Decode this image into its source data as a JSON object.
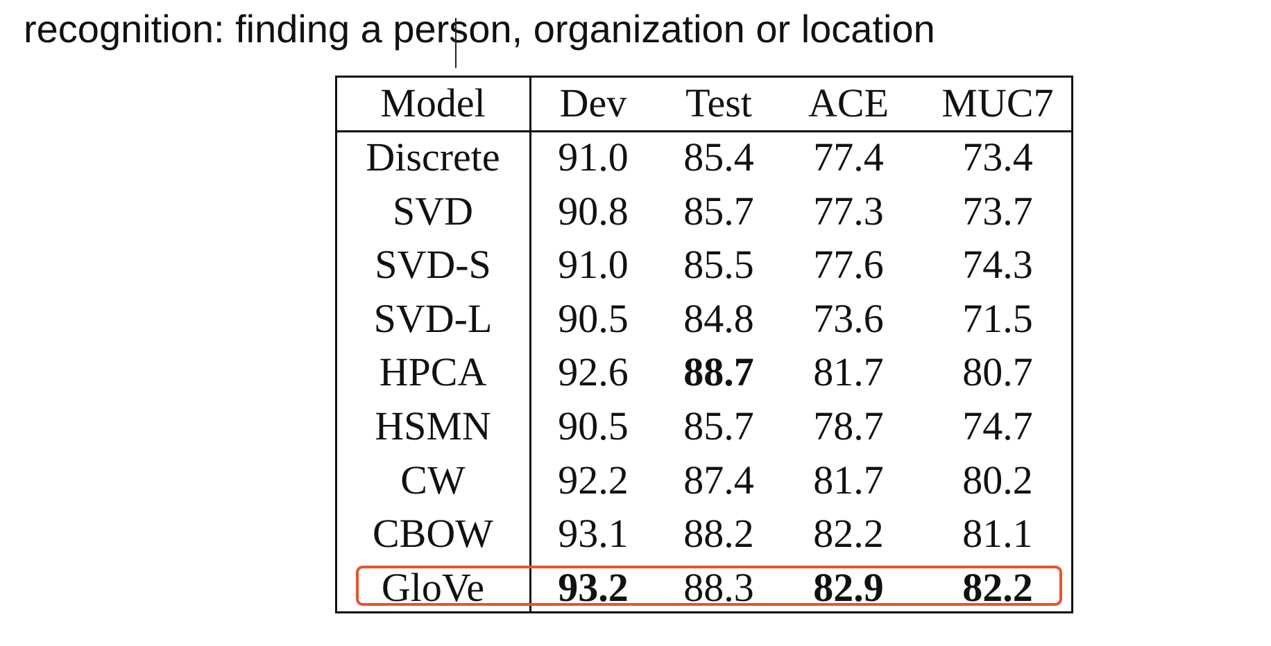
{
  "heading": "recognition: finding a person, organization or location",
  "table": {
    "columns": [
      "Model",
      "Dev",
      "Test",
      "ACE",
      "MUC7"
    ],
    "rows": [
      {
        "model": "Discrete",
        "values": [
          "91.0",
          "85.4",
          "77.4",
          "73.4"
        ],
        "bold": [
          false,
          false,
          false,
          false
        ]
      },
      {
        "model": "SVD",
        "values": [
          "90.8",
          "85.7",
          "77.3",
          "73.7"
        ],
        "bold": [
          false,
          false,
          false,
          false
        ]
      },
      {
        "model": "SVD-S",
        "values": [
          "91.0",
          "85.5",
          "77.6",
          "74.3"
        ],
        "bold": [
          false,
          false,
          false,
          false
        ]
      },
      {
        "model": "SVD-L",
        "values": [
          "90.5",
          "84.8",
          "73.6",
          "71.5"
        ],
        "bold": [
          false,
          false,
          false,
          false
        ]
      },
      {
        "model": "HPCA",
        "values": [
          "92.6",
          "88.7",
          "81.7",
          "80.7"
        ],
        "bold": [
          false,
          true,
          false,
          false
        ]
      },
      {
        "model": "HSMN",
        "values": [
          "90.5",
          "85.7",
          "78.7",
          "74.7"
        ],
        "bold": [
          false,
          false,
          false,
          false
        ]
      },
      {
        "model": "CW",
        "values": [
          "92.2",
          "87.4",
          "81.7",
          "80.2"
        ],
        "bold": [
          false,
          false,
          false,
          false
        ]
      },
      {
        "model": "CBOW",
        "values": [
          "93.1",
          "88.2",
          "82.2",
          "81.1"
        ],
        "bold": [
          false,
          false,
          false,
          false
        ]
      },
      {
        "model": "GloVe",
        "values": [
          "93.2",
          "88.3",
          "82.9",
          "82.2"
        ],
        "bold": [
          true,
          false,
          true,
          true
        ]
      }
    ],
    "highlighted_row": "GloVe"
  },
  "colors": {
    "highlight": "#e8532e",
    "text": "#111111"
  }
}
